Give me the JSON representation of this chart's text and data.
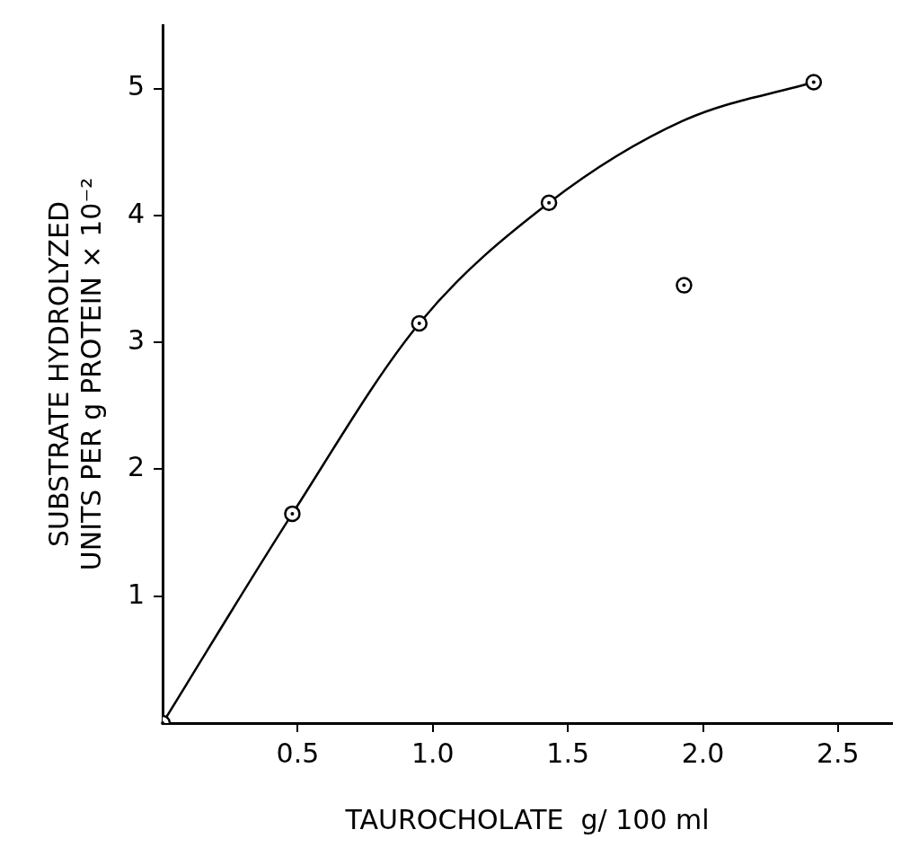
{
  "chart_data": {
    "type": "scatter",
    "xlabel": "TAUROCHOLATE  g/ 100 ml",
    "ylabel": "SUBSTRATE HYDROLYZED\nUNITS PER g PROTEIN × 10⁻²",
    "xlim": [
      0,
      2.7
    ],
    "ylim": [
      0,
      5.5
    ],
    "xticks": [
      0.5,
      {
        "value": 1,
        "label": "1.0"
      },
      1.5,
      {
        "value": 2,
        "label": "2.0"
      },
      2.5
    ],
    "yticks": [
      1,
      2,
      3,
      4,
      5
    ],
    "grid": false,
    "legend": false,
    "marker": "circle",
    "series": [
      {
        "type": "line",
        "color": "#000000",
        "marker": "none",
        "x": [
          0,
          0.48,
          0.95,
          1.43,
          1.93,
          2.41
        ],
        "values": [
          0,
          1.65,
          3.15,
          4.1,
          4.75,
          5.05
        ]
      },
      {
        "color": "#000000",
        "x": [
          0,
          0.48,
          0.95,
          1.43,
          1.93,
          2.41
        ],
        "values": [
          0,
          1.65,
          3.15,
          4.1,
          3.45,
          5.05
        ]
      }
    ]
  }
}
